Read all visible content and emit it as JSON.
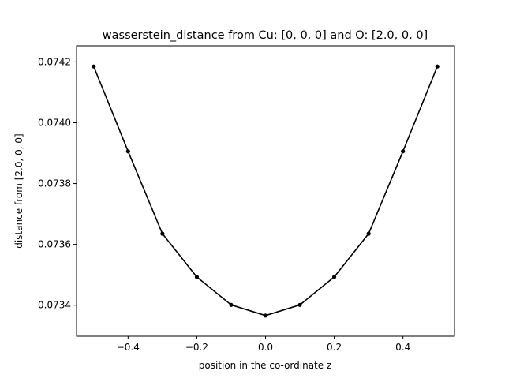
{
  "chart_data": {
    "type": "line",
    "title": "wasserstein_distance from Cu: [0, 0, 0] and O: [2.0, 0, 0]",
    "xlabel": "position in the co-ordinate z",
    "ylabel": "distance from [2.0, 0, 0]",
    "x": [
      -0.5,
      -0.4,
      -0.3,
      -0.2,
      -0.1,
      0.0,
      0.1,
      0.2,
      0.3,
      0.4,
      0.5
    ],
    "series": [
      {
        "values": [
          0.074185,
          0.073906,
          0.073635,
          0.073493,
          0.073401,
          0.073366,
          0.073401,
          0.073493,
          0.073635,
          0.073906,
          0.074185
        ],
        "color": "#000000",
        "marker": "circle"
      }
    ],
    "xlim": [
      -0.55,
      0.55
    ],
    "ylim": [
      0.073298,
      0.074253
    ],
    "xticks": [
      -0.4,
      -0.2,
      0.0,
      0.2,
      0.4
    ],
    "xtick_labels": [
      "−0.4",
      "−0.2",
      "0.0",
      "0.2",
      "0.4"
    ],
    "yticks": [
      0.0734,
      0.0736,
      0.0738,
      0.074,
      0.0742
    ],
    "ytick_labels": [
      "0.0734",
      "0.0736",
      "0.0738",
      "0.0740",
      "0.0742"
    ],
    "grid": false,
    "legend": "none"
  }
}
